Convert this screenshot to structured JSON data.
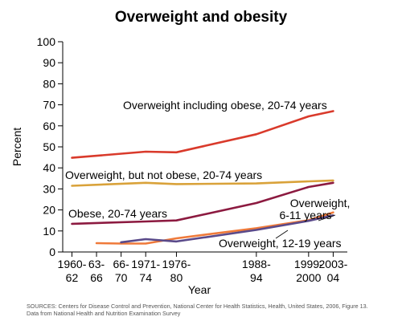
{
  "chart_data": {
    "type": "line",
    "title": "Overweight and obesity",
    "xlabel": "Year",
    "ylabel": "Percent",
    "ylim": [
      0,
      100
    ],
    "yticks": [
      0,
      10,
      20,
      30,
      40,
      50,
      60,
      70,
      80,
      90,
      100
    ],
    "x_tick_labels": [
      {
        "x": 1961,
        "lines": [
          "1960-",
          "62"
        ]
      },
      {
        "x": 1965,
        "lines": [
          "63-",
          "66"
        ]
      },
      {
        "x": 1969,
        "lines": [
          "66-",
          "70"
        ]
      },
      {
        "x": 1973,
        "lines": [
          "1971-",
          "74"
        ]
      },
      {
        "x": 1978,
        "lines": [
          "1976-",
          "80"
        ]
      },
      {
        "x": 1991,
        "lines": [
          "1988-",
          "94"
        ]
      },
      {
        "x": 1999.5,
        "lines": [
          "1999-",
          "2000"
        ]
      },
      {
        "x": 2003.5,
        "lines": [
          "2003-",
          "04"
        ]
      }
    ],
    "series": [
      {
        "name": "Overweight including obese, 20-74 years",
        "color": "#d93a2b",
        "points": [
          [
            1961,
            44.8
          ],
          [
            1973,
            47.7
          ],
          [
            1978,
            47.4
          ],
          [
            1991,
            56.0
          ],
          [
            1999.5,
            64.5
          ],
          [
            2003.5,
            67.0
          ]
        ]
      },
      {
        "name": "Overweight, but not obese, 20-74 years",
        "color": "#d9a23a",
        "points": [
          [
            1961,
            31.5
          ],
          [
            1973,
            32.9
          ],
          [
            1978,
            32.3
          ],
          [
            1991,
            32.6
          ],
          [
            1999.5,
            33.6
          ],
          [
            2003.5,
            34.0
          ]
        ]
      },
      {
        "name": "Obese, 20-74 years",
        "color": "#8c1a40",
        "points": [
          [
            1961,
            13.4
          ],
          [
            1973,
            14.5
          ],
          [
            1978,
            15.0
          ],
          [
            1991,
            23.3
          ],
          [
            1999.5,
            30.9
          ],
          [
            2003.5,
            32.9
          ]
        ]
      },
      {
        "name": "Overweight, 6-11 years",
        "color": "#ef7a3a",
        "points": [
          [
            1965,
            4.2
          ],
          [
            1969,
            4.0
          ],
          [
            1973,
            4.0
          ],
          [
            1978,
            6.5
          ],
          [
            1991,
            11.3
          ],
          [
            1999.5,
            15.1
          ],
          [
            2003.5,
            18.8
          ]
        ]
      },
      {
        "name": "Overweight, 12-19 years",
        "color": "#5a4a8a",
        "points": [
          [
            1969,
            4.6
          ],
          [
            1973,
            6.1
          ],
          [
            1978,
            5.0
          ],
          [
            1991,
            10.5
          ],
          [
            1999.5,
            14.8
          ],
          [
            2003.5,
            17.4
          ]
        ]
      }
    ]
  },
  "footer": {
    "line1": "SOURCES: Centers for Disease Control and Prevention, National Center for Health Statistics, Health, United States, 2006, Figure 13.",
    "line2": "Data from National Health and Nutrition Examination Survey"
  }
}
